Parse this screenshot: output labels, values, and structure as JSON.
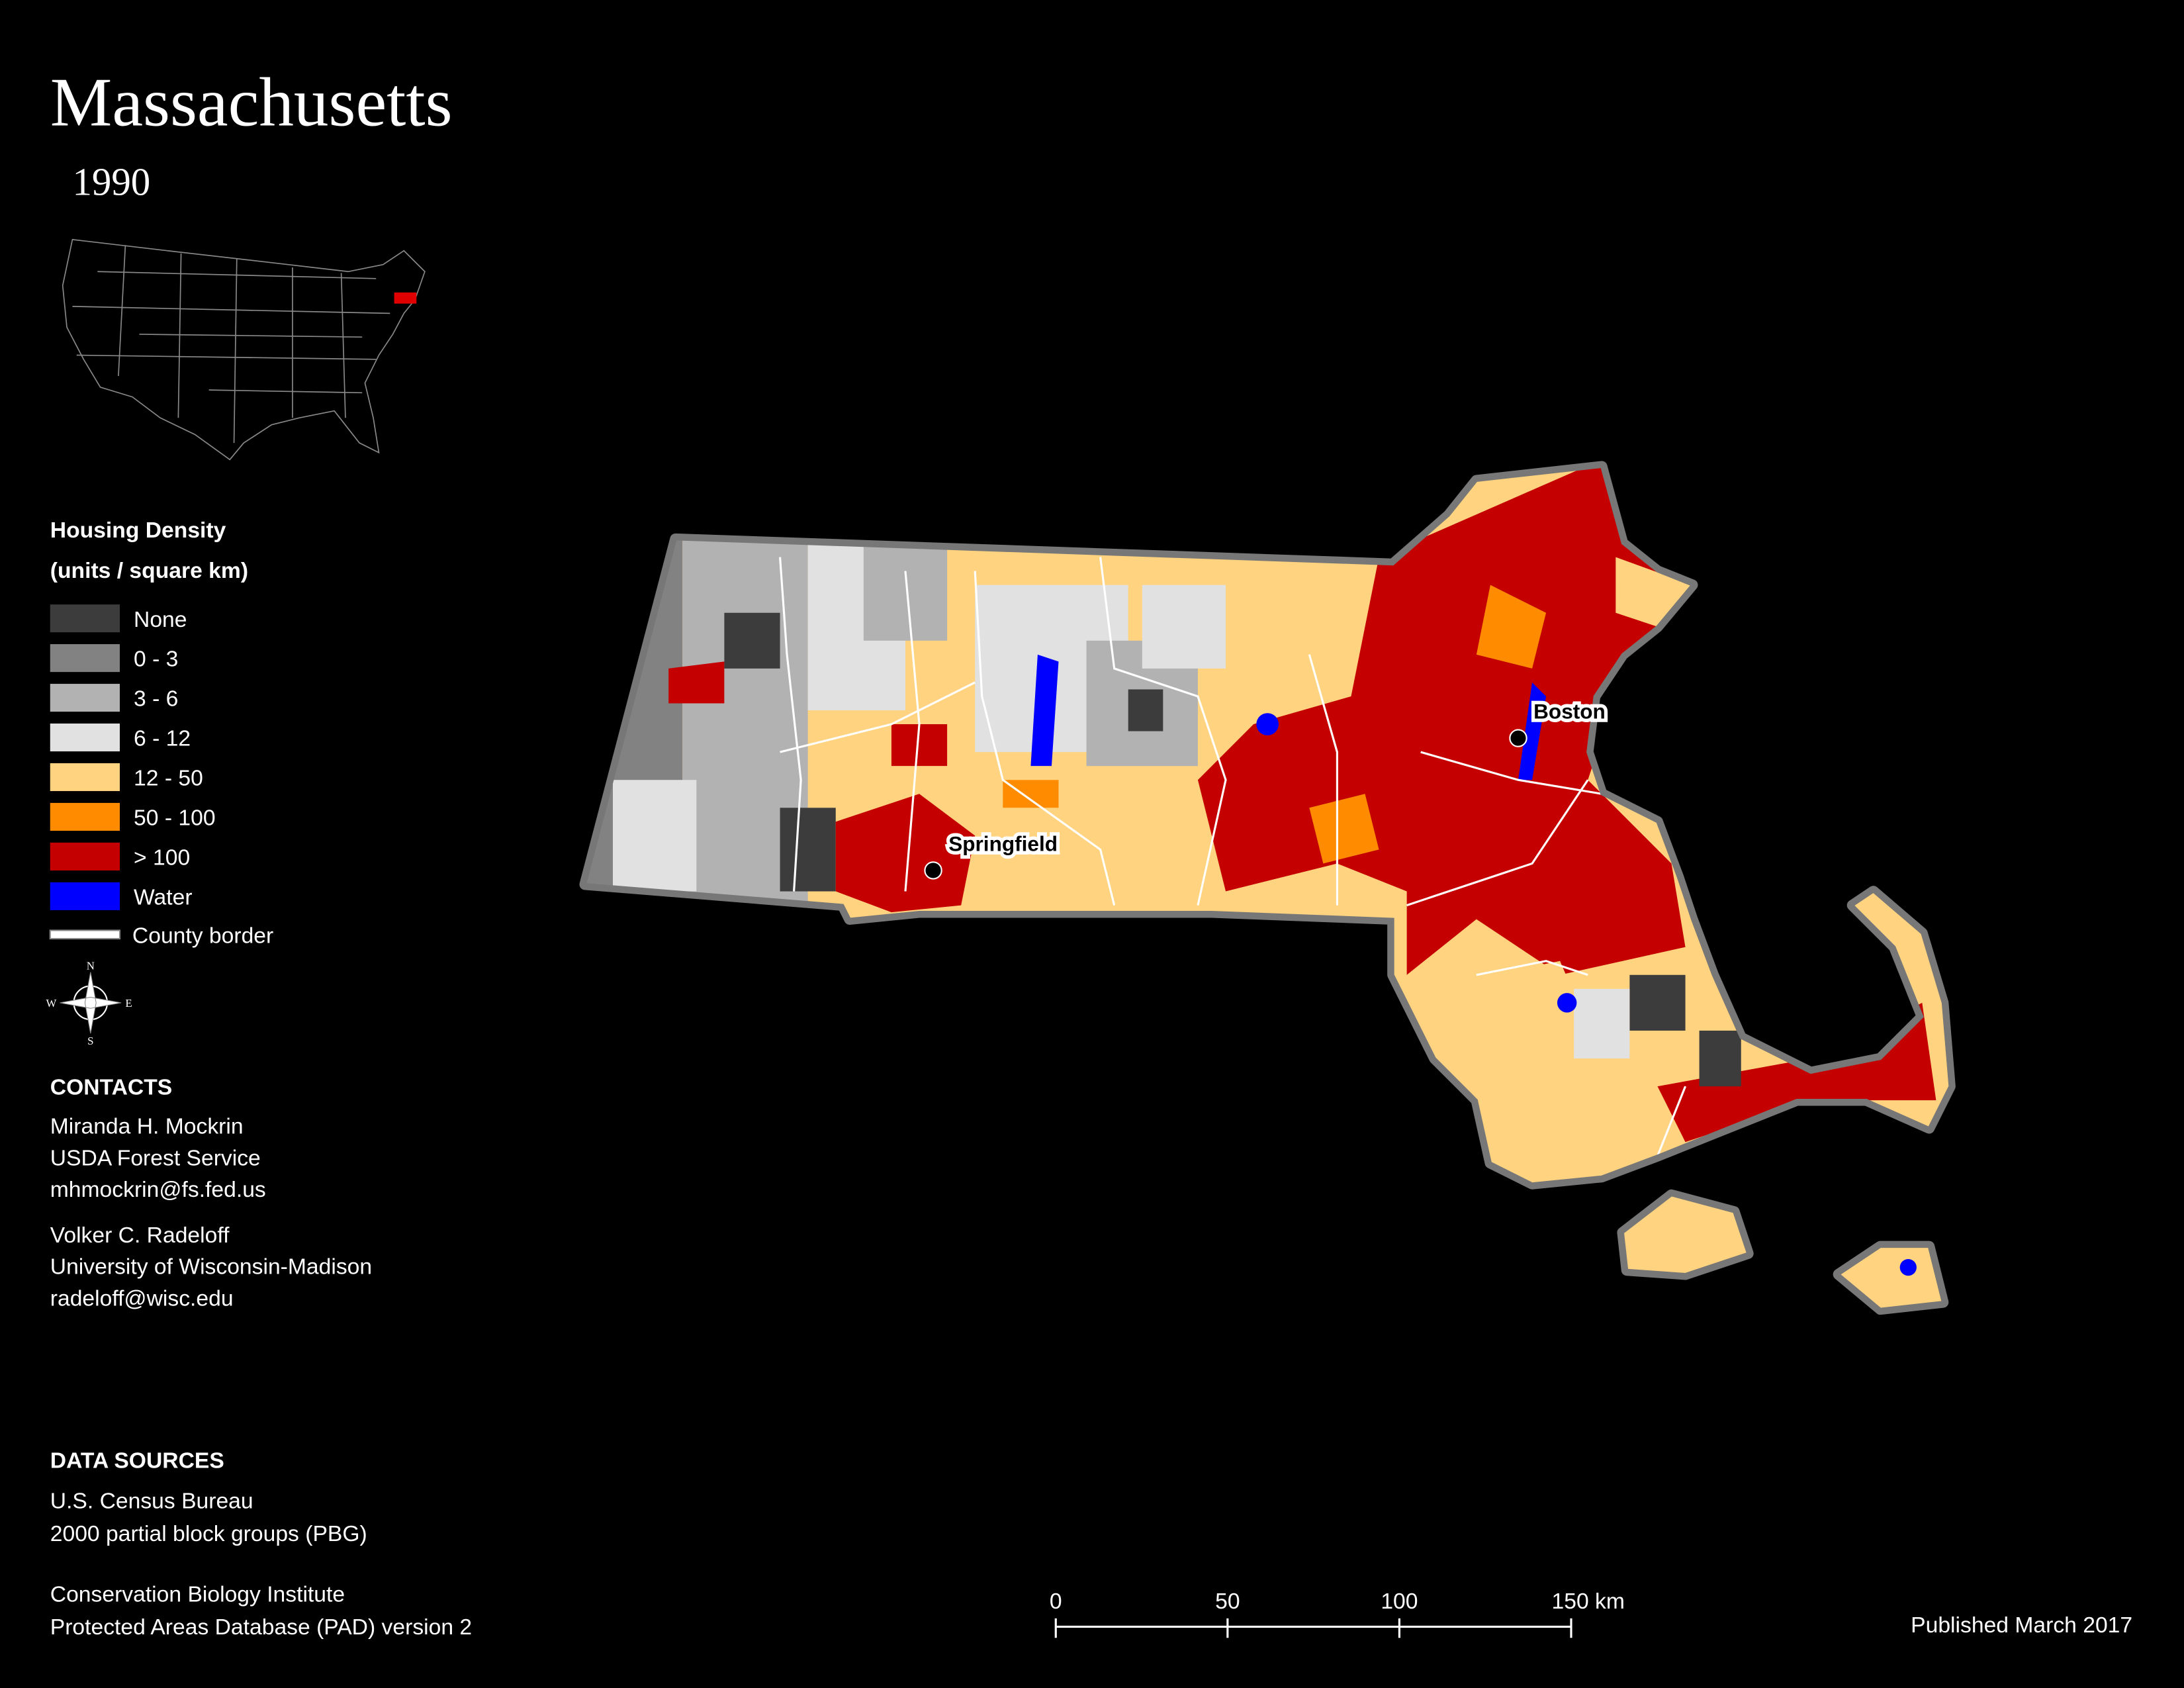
{
  "title": "Massachusetts",
  "subtitle": "1990",
  "legend": {
    "title": "Housing Density",
    "subtitle": "(units / square km)",
    "items": [
      {
        "label": "None",
        "color": "#3c3c3c"
      },
      {
        "label": "0 - 3",
        "color": "#828282"
      },
      {
        "label": "3 - 6",
        "color": "#b2b2b2"
      },
      {
        "label": "6 - 12",
        "color": "#e1e1e1"
      },
      {
        "label": "12 - 50",
        "color": "#ffd37f"
      },
      {
        "label": "50 - 100",
        "color": "#ff8c00"
      },
      {
        "label": "> 100",
        "color": "#c40000"
      },
      {
        "label": "Water",
        "color": "#0000ff"
      }
    ],
    "border_label": "County border"
  },
  "compass": {
    "n": "N",
    "e": "E",
    "s": "S",
    "w": "W"
  },
  "cities": [
    {
      "label": "Boston"
    },
    {
      "label": "Springfield"
    }
  ],
  "contacts": {
    "heading": "CONTACTS",
    "people": [
      [
        "Miranda H. Mockrin",
        "USDA Forest Service",
        "mhmockrin@fs.fed.us"
      ],
      [
        "Volker C. Radeloff",
        "University of Wisconsin-Madison",
        "radeloff@wisc.edu"
      ]
    ]
  },
  "data_sources": {
    "heading": "DATA SOURCES",
    "groups": [
      [
        "U.S. Census Bureau",
        "2000 partial block groups (PBG)"
      ],
      [
        "Conservation Biology Institute",
        "Protected Areas Database (PAD) version 2"
      ]
    ]
  },
  "scale_bar": [
    "0",
    "50",
    "100",
    "150 km"
  ],
  "published": "Published March 2017"
}
